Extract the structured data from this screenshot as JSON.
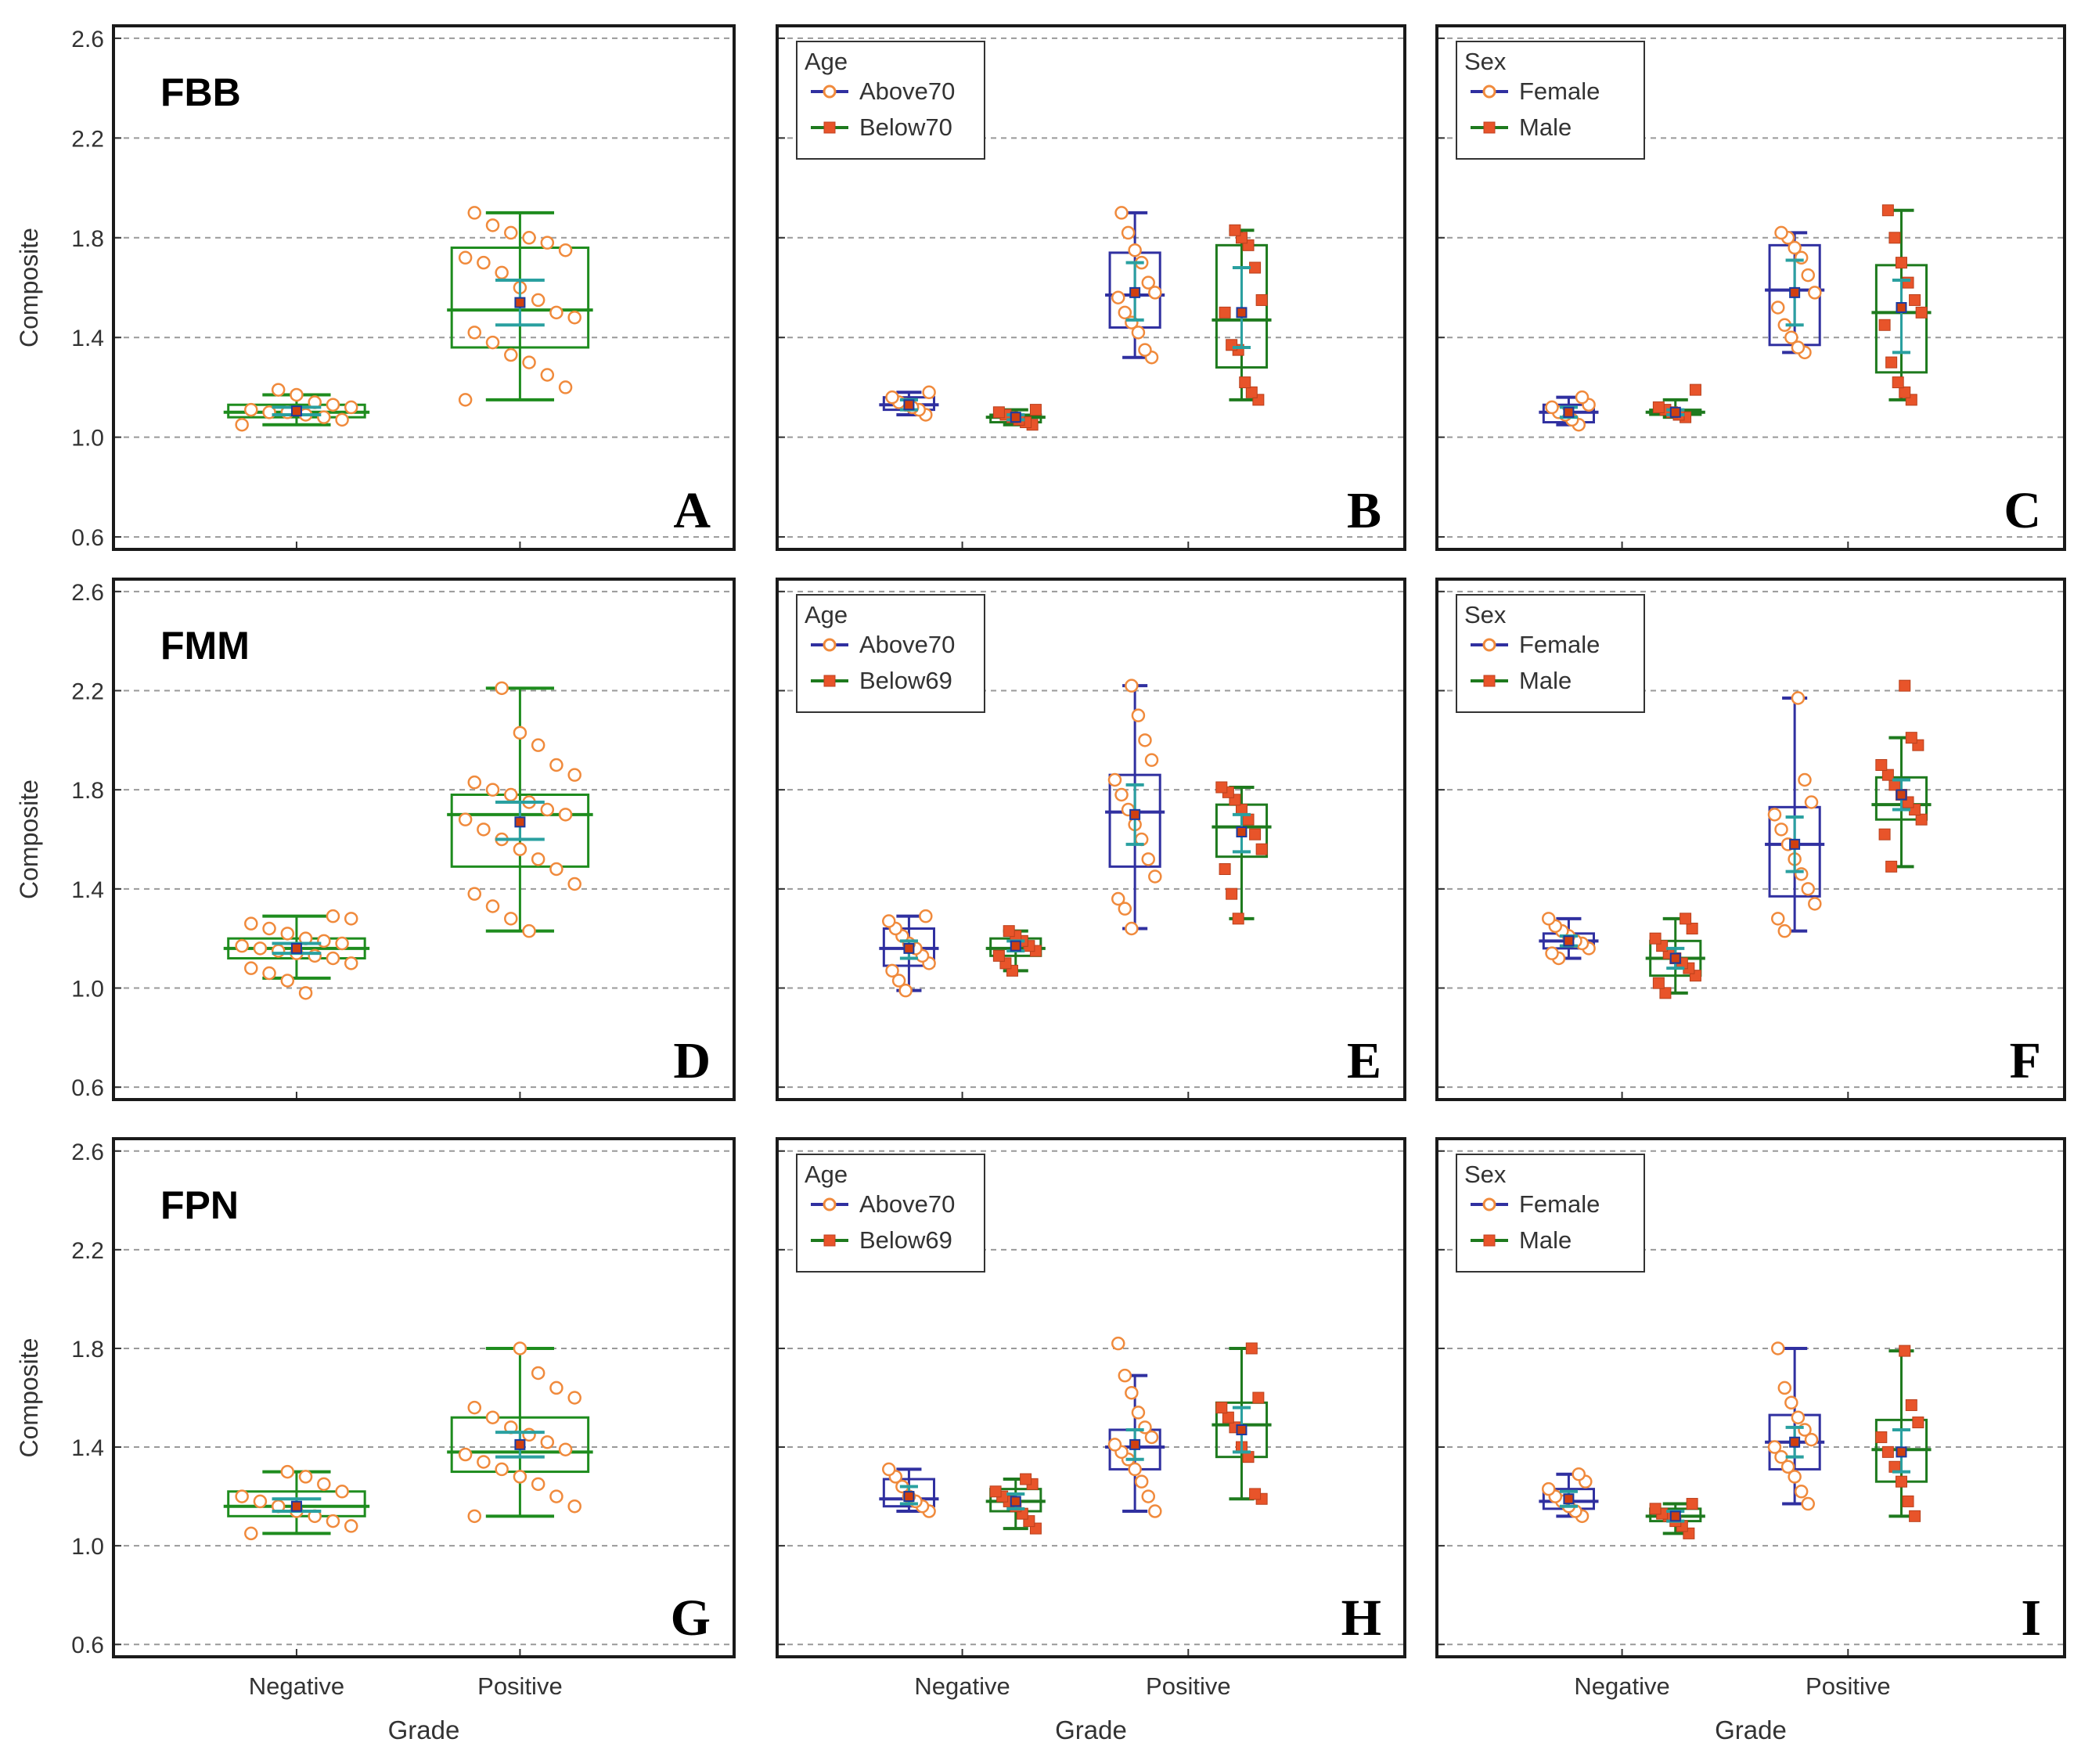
{
  "figure": {
    "y_axis_label": "Composite",
    "x_axis_label": "Grade",
    "categories": [
      "Negative",
      "Positive"
    ],
    "y_ticks": [
      "0.6",
      "1.0",
      "1.4",
      "1.8",
      "2.2",
      "2.6"
    ],
    "colors": {
      "overall_box": "#1e8c1e",
      "group1_box": "#3030a0",
      "group2_box": "#1e7a1e",
      "mean_ci": "#2aa0a0",
      "point_open": "#f08a3c",
      "point_filled": "#e8542a",
      "grid": "#999999"
    }
  },
  "chart_data": [
    {
      "panel": "A",
      "tracer": "FBB",
      "type": "box",
      "legend": null,
      "ylim": [
        0.55,
        2.65
      ],
      "groups": [
        {
          "category": "Negative",
          "series": "All",
          "min": 1.05,
          "q1": 1.08,
          "median": 1.1,
          "q3": 1.13,
          "max": 1.17,
          "mean": 1.105,
          "ci": [
            1.09,
            1.12
          ],
          "points": [
            1.05,
            1.07,
            1.08,
            1.09,
            1.1,
            1.1,
            1.11,
            1.12,
            1.13,
            1.14,
            1.17,
            1.19
          ]
        },
        {
          "category": "Positive",
          "series": "All",
          "min": 1.15,
          "q1": 1.36,
          "median": 1.51,
          "q3": 1.76,
          "max": 1.9,
          "mean": 1.54,
          "ci": [
            1.45,
            1.63
          ],
          "points": [
            1.15,
            1.2,
            1.25,
            1.3,
            1.33,
            1.38,
            1.42,
            1.48,
            1.5,
            1.55,
            1.6,
            1.66,
            1.7,
            1.72,
            1.75,
            1.78,
            1.8,
            1.82,
            1.85,
            1.9
          ]
        }
      ]
    },
    {
      "panel": "B",
      "tracer": "",
      "type": "box",
      "legend": {
        "title": "Age",
        "entries": [
          "Above70",
          "Below70"
        ]
      },
      "ylim": [
        0.55,
        2.65
      ],
      "groups": [
        {
          "category": "Negative",
          "series": "Above70",
          "min": 1.09,
          "q1": 1.11,
          "median": 1.13,
          "q3": 1.16,
          "max": 1.18,
          "mean": 1.13,
          "ci": [
            1.11,
            1.15
          ],
          "points": [
            1.09,
            1.11,
            1.12,
            1.13,
            1.14,
            1.16,
            1.18
          ]
        },
        {
          "category": "Negative",
          "series": "Below70",
          "min": 1.05,
          "q1": 1.06,
          "median": 1.08,
          "q3": 1.09,
          "max": 1.11,
          "mean": 1.08,
          "ci": [
            1.07,
            1.09
          ],
          "points": [
            1.05,
            1.06,
            1.07,
            1.08,
            1.09,
            1.1,
            1.11
          ]
        },
        {
          "category": "Positive",
          "series": "Above70",
          "min": 1.32,
          "q1": 1.44,
          "median": 1.57,
          "q3": 1.74,
          "max": 1.9,
          "mean": 1.58,
          "ci": [
            1.47,
            1.7
          ],
          "points": [
            1.32,
            1.35,
            1.42,
            1.46,
            1.5,
            1.56,
            1.58,
            1.62,
            1.7,
            1.75,
            1.82,
            1.9
          ]
        },
        {
          "category": "Positive",
          "series": "Below70",
          "min": 1.15,
          "q1": 1.28,
          "median": 1.47,
          "q3": 1.77,
          "max": 1.83,
          "mean": 1.5,
          "ci": [
            1.36,
            1.68
          ],
          "points": [
            1.15,
            1.18,
            1.22,
            1.35,
            1.37,
            1.5,
            1.55,
            1.68,
            1.77,
            1.8,
            1.83
          ]
        }
      ]
    },
    {
      "panel": "C",
      "tracer": "",
      "type": "box",
      "legend": {
        "title": "Sex",
        "entries": [
          "Female",
          "Male"
        ]
      },
      "ylim": [
        0.55,
        2.65
      ],
      "groups": [
        {
          "category": "Negative",
          "series": "Female",
          "min": 1.05,
          "q1": 1.06,
          "median": 1.1,
          "q3": 1.13,
          "max": 1.16,
          "mean": 1.1,
          "ci": [
            1.08,
            1.12
          ],
          "points": [
            1.05,
            1.07,
            1.09,
            1.1,
            1.12,
            1.13,
            1.16
          ]
        },
        {
          "category": "Negative",
          "series": "Male",
          "min": 1.08,
          "q1": 1.09,
          "median": 1.1,
          "q3": 1.11,
          "max": 1.15,
          "mean": 1.1,
          "ci": [
            1.09,
            1.11
          ],
          "points": [
            1.08,
            1.09,
            1.1,
            1.11,
            1.12,
            1.19
          ]
        },
        {
          "category": "Positive",
          "series": "Female",
          "min": 1.34,
          "q1": 1.37,
          "median": 1.59,
          "q3": 1.77,
          "max": 1.82,
          "mean": 1.58,
          "ci": [
            1.45,
            1.71
          ],
          "points": [
            1.34,
            1.36,
            1.4,
            1.45,
            1.52,
            1.58,
            1.65,
            1.72,
            1.76,
            1.8,
            1.82
          ]
        },
        {
          "category": "Positive",
          "series": "Male",
          "min": 1.15,
          "q1": 1.26,
          "median": 1.5,
          "q3": 1.69,
          "max": 1.91,
          "mean": 1.52,
          "ci": [
            1.34,
            1.63
          ],
          "points": [
            1.15,
            1.18,
            1.22,
            1.3,
            1.45,
            1.5,
            1.55,
            1.62,
            1.7,
            1.8,
            1.91
          ]
        }
      ]
    },
    {
      "panel": "D",
      "tracer": "FMM",
      "type": "box",
      "legend": null,
      "ylim": [
        0.55,
        2.65
      ],
      "groups": [
        {
          "category": "Negative",
          "series": "All",
          "min": 1.04,
          "q1": 1.12,
          "median": 1.16,
          "q3": 1.2,
          "max": 1.29,
          "mean": 1.16,
          "ci": [
            1.14,
            1.18
          ],
          "points": [
            0.98,
            1.03,
            1.06,
            1.08,
            1.1,
            1.12,
            1.13,
            1.14,
            1.15,
            1.16,
            1.17,
            1.18,
            1.19,
            1.2,
            1.22,
            1.24,
            1.26,
            1.28,
            1.29
          ]
        },
        {
          "category": "Positive",
          "series": "All",
          "min": 1.23,
          "q1": 1.49,
          "median": 1.7,
          "q3": 1.78,
          "max": 2.21,
          "mean": 1.67,
          "ci": [
            1.6,
            1.75
          ],
          "points": [
            1.23,
            1.28,
            1.33,
            1.38,
            1.42,
            1.48,
            1.52,
            1.56,
            1.6,
            1.64,
            1.68,
            1.7,
            1.72,
            1.75,
            1.78,
            1.8,
            1.83,
            1.86,
            1.9,
            1.98,
            2.03,
            2.21
          ]
        }
      ]
    },
    {
      "panel": "E",
      "tracer": "",
      "type": "box",
      "legend": {
        "title": "Age",
        "entries": [
          "Above70",
          "Below69"
        ]
      },
      "ylim": [
        0.55,
        2.65
      ],
      "groups": [
        {
          "category": "Negative",
          "series": "Above70",
          "min": 0.99,
          "q1": 1.09,
          "median": 1.16,
          "q3": 1.24,
          "max": 1.29,
          "mean": 1.16,
          "ci": [
            1.12,
            1.19
          ],
          "points": [
            0.99,
            1.03,
            1.07,
            1.1,
            1.13,
            1.16,
            1.18,
            1.21,
            1.24,
            1.27,
            1.29
          ]
        },
        {
          "category": "Negative",
          "series": "Below69",
          "min": 1.07,
          "q1": 1.13,
          "median": 1.16,
          "q3": 1.2,
          "max": 1.23,
          "mean": 1.17,
          "ci": [
            1.15,
            1.19
          ],
          "points": [
            1.07,
            1.1,
            1.13,
            1.15,
            1.17,
            1.19,
            1.21,
            1.23
          ]
        },
        {
          "category": "Positive",
          "series": "Above70",
          "min": 1.24,
          "q1": 1.49,
          "median": 1.71,
          "q3": 1.86,
          "max": 2.22,
          "mean": 1.7,
          "ci": [
            1.58,
            1.82
          ],
          "points": [
            1.24,
            1.32,
            1.36,
            1.45,
            1.52,
            1.6,
            1.66,
            1.72,
            1.78,
            1.84,
            1.92,
            2.0,
            2.1,
            2.22
          ]
        },
        {
          "category": "Positive",
          "series": "Below69",
          "min": 1.28,
          "q1": 1.53,
          "median": 1.65,
          "q3": 1.74,
          "max": 1.81,
          "mean": 1.63,
          "ci": [
            1.55,
            1.7
          ],
          "points": [
            1.28,
            1.38,
            1.48,
            1.56,
            1.62,
            1.68,
            1.72,
            1.76,
            1.79,
            1.81
          ]
        }
      ]
    },
    {
      "panel": "F",
      "tracer": "",
      "type": "box",
      "legend": {
        "title": "Sex",
        "entries": [
          "Female",
          "Male"
        ]
      },
      "ylim": [
        0.55,
        2.65
      ],
      "groups": [
        {
          "category": "Negative",
          "series": "Female",
          "min": 1.12,
          "q1": 1.16,
          "median": 1.19,
          "q3": 1.22,
          "max": 1.28,
          "mean": 1.19,
          "ci": [
            1.17,
            1.21
          ],
          "points": [
            1.12,
            1.14,
            1.16,
            1.18,
            1.19,
            1.21,
            1.23,
            1.25,
            1.28
          ]
        },
        {
          "category": "Negative",
          "series": "Male",
          "min": 0.98,
          "q1": 1.05,
          "median": 1.12,
          "q3": 1.19,
          "max": 1.28,
          "mean": 1.12,
          "ci": [
            1.08,
            1.16
          ],
          "points": [
            0.98,
            1.02,
            1.05,
            1.08,
            1.1,
            1.12,
            1.14,
            1.17,
            1.2,
            1.24,
            1.28
          ]
        },
        {
          "category": "Positive",
          "series": "Female",
          "min": 1.23,
          "q1": 1.37,
          "median": 1.58,
          "q3": 1.73,
          "max": 2.17,
          "mean": 1.58,
          "ci": [
            1.47,
            1.69
          ],
          "points": [
            1.23,
            1.28,
            1.34,
            1.4,
            1.46,
            1.52,
            1.58,
            1.64,
            1.7,
            1.75,
            1.84,
            2.17
          ]
        },
        {
          "category": "Positive",
          "series": "Male",
          "min": 1.49,
          "q1": 1.68,
          "median": 1.74,
          "q3": 1.85,
          "max": 2.01,
          "mean": 1.78,
          "ci": [
            1.72,
            1.84
          ],
          "points": [
            1.49,
            1.62,
            1.68,
            1.72,
            1.75,
            1.78,
            1.82,
            1.86,
            1.9,
            1.98,
            2.01,
            2.22
          ]
        }
      ]
    },
    {
      "panel": "G",
      "tracer": "FPN",
      "type": "box",
      "legend": null,
      "ylim": [
        0.55,
        2.65
      ],
      "groups": [
        {
          "category": "Negative",
          "series": "All",
          "min": 1.05,
          "q1": 1.12,
          "median": 1.16,
          "q3": 1.22,
          "max": 1.3,
          "mean": 1.16,
          "ci": [
            1.14,
            1.19
          ],
          "points": [
            1.05,
            1.08,
            1.1,
            1.12,
            1.14,
            1.16,
            1.18,
            1.2,
            1.22,
            1.25,
            1.28,
            1.3
          ]
        },
        {
          "category": "Positive",
          "series": "All",
          "min": 1.12,
          "q1": 1.3,
          "median": 1.38,
          "q3": 1.52,
          "max": 1.8,
          "mean": 1.41,
          "ci": [
            1.36,
            1.46
          ],
          "points": [
            1.12,
            1.16,
            1.2,
            1.25,
            1.28,
            1.31,
            1.34,
            1.37,
            1.39,
            1.42,
            1.45,
            1.48,
            1.52,
            1.56,
            1.6,
            1.64,
            1.7,
            1.8
          ]
        }
      ]
    },
    {
      "panel": "H",
      "tracer": "",
      "type": "box",
      "legend": {
        "title": "Age",
        "entries": [
          "Above70",
          "Below69"
        ]
      },
      "ylim": [
        0.55,
        2.65
      ],
      "groups": [
        {
          "category": "Negative",
          "series": "Above70",
          "min": 1.14,
          "q1": 1.16,
          "median": 1.19,
          "q3": 1.27,
          "max": 1.31,
          "mean": 1.2,
          "ci": [
            1.17,
            1.24
          ],
          "points": [
            1.14,
            1.16,
            1.18,
            1.2,
            1.24,
            1.28,
            1.31
          ]
        },
        {
          "category": "Negative",
          "series": "Below69",
          "min": 1.07,
          "q1": 1.14,
          "median": 1.18,
          "q3": 1.23,
          "max": 1.27,
          "mean": 1.18,
          "ci": [
            1.15,
            1.21
          ],
          "points": [
            1.07,
            1.1,
            1.13,
            1.16,
            1.18,
            1.2,
            1.22,
            1.25,
            1.27
          ]
        },
        {
          "category": "Positive",
          "series": "Above70",
          "min": 1.14,
          "q1": 1.31,
          "median": 1.4,
          "q3": 1.47,
          "max": 1.69,
          "mean": 1.41,
          "ci": [
            1.35,
            1.47
          ],
          "points": [
            1.14,
            1.2,
            1.26,
            1.31,
            1.35,
            1.38,
            1.41,
            1.44,
            1.48,
            1.54,
            1.62,
            1.69,
            1.82
          ]
        },
        {
          "category": "Positive",
          "series": "Below69",
          "min": 1.19,
          "q1": 1.36,
          "median": 1.49,
          "q3": 1.58,
          "max": 1.8,
          "mean": 1.47,
          "ci": [
            1.38,
            1.56
          ],
          "points": [
            1.19,
            1.21,
            1.36,
            1.4,
            1.48,
            1.52,
            1.56,
            1.6,
            1.8
          ]
        }
      ]
    },
    {
      "panel": "I",
      "tracer": "",
      "type": "box",
      "legend": {
        "title": "Sex",
        "entries": [
          "Female",
          "Male"
        ]
      },
      "ylim": [
        0.55,
        2.65
      ],
      "groups": [
        {
          "category": "Negative",
          "series": "Female",
          "min": 1.12,
          "q1": 1.15,
          "median": 1.18,
          "q3": 1.23,
          "max": 1.29,
          "mean": 1.19,
          "ci": [
            1.16,
            1.22
          ],
          "points": [
            1.12,
            1.14,
            1.16,
            1.18,
            1.2,
            1.23,
            1.26,
            1.29
          ]
        },
        {
          "category": "Negative",
          "series": "Male",
          "min": 1.05,
          "q1": 1.1,
          "median": 1.12,
          "q3": 1.15,
          "max": 1.17,
          "mean": 1.12,
          "ci": [
            1.1,
            1.14
          ],
          "points": [
            1.05,
            1.08,
            1.1,
            1.12,
            1.13,
            1.15,
            1.17
          ]
        },
        {
          "category": "Positive",
          "series": "Female",
          "min": 1.17,
          "q1": 1.31,
          "median": 1.42,
          "q3": 1.53,
          "max": 1.8,
          "mean": 1.42,
          "ci": [
            1.36,
            1.48
          ],
          "points": [
            1.17,
            1.22,
            1.28,
            1.32,
            1.36,
            1.4,
            1.43,
            1.47,
            1.52,
            1.58,
            1.64,
            1.8
          ]
        },
        {
          "category": "Positive",
          "series": "Male",
          "min": 1.12,
          "q1": 1.26,
          "median": 1.39,
          "q3": 1.51,
          "max": 1.79,
          "mean": 1.38,
          "ci": [
            1.3,
            1.47
          ],
          "points": [
            1.12,
            1.18,
            1.26,
            1.32,
            1.38,
            1.44,
            1.5,
            1.57,
            1.79
          ]
        }
      ]
    }
  ]
}
